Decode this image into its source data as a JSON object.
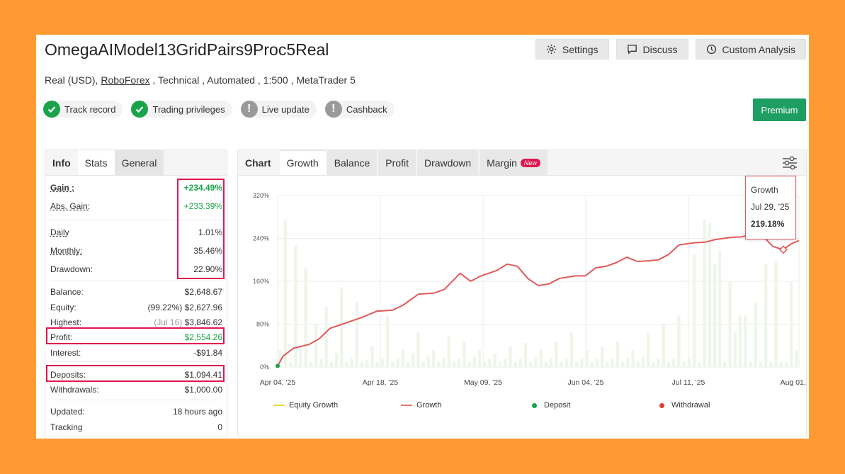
{
  "header": {
    "title": "OmegaAIModel13GridPairs9Proc5Real",
    "buttons": [
      {
        "label": "Settings",
        "icon": "gear-icon"
      },
      {
        "label": "Discuss",
        "icon": "chat-icon"
      },
      {
        "label": "Custom Analysis",
        "icon": "clock-icon"
      }
    ],
    "meta_prefix": "Real (USD), ",
    "meta_broker": "RoboForex",
    "meta_suffix": " , Technical , Automated , 1:500 , MetaTrader 5",
    "premium_label": "Premium"
  },
  "badges": [
    {
      "label": "Track record",
      "status": "ok"
    },
    {
      "label": "Trading privileges",
      "status": "ok"
    },
    {
      "label": "Live update",
      "status": "warn"
    },
    {
      "label": "Cashback",
      "status": "warn"
    }
  ],
  "stats": {
    "tabs": [
      "Info",
      "Stats",
      "General"
    ],
    "gain_label": "Gain :",
    "gain_value": "+234.49%",
    "abs_gain_label": "Abs. Gain:",
    "abs_gain_value": "+233.39%",
    "daily_label": "Daily",
    "daily_value": "1.01%",
    "monthly_label": "Monthly:",
    "monthly_value": "35.46%",
    "drawdown_label": "Drawdown:",
    "drawdown_value": "22.90%",
    "balance_label": "Balance:",
    "balance_value": "$2,648.67",
    "equity_label": "Equity:",
    "equity_pct": "(99.22%)",
    "equity_value": "$2,627.96",
    "highest_label": "Highest:",
    "highest_date": "(Jul 16)",
    "highest_value": "$3,846.62",
    "profit_label": "Profit:",
    "profit_value": "$2,554.26",
    "interest_label": "Interest:",
    "interest_value": "-$91.84",
    "deposits_label": "Deposits:",
    "deposits_value": "$1,094.41",
    "withdrawals_label": "Withdrawals:",
    "withdrawals_value": "$1,000.00",
    "updated_label": "Updated:",
    "updated_value": "18 hours ago",
    "tracking_label": "Tracking",
    "tracking_value": "0"
  },
  "chart_panel": {
    "tabs": [
      "Chart",
      "Growth",
      "Balance",
      "Profit",
      "Drawdown",
      "Margin"
    ],
    "new_badge": "New",
    "tooltip": {
      "title": "Growth",
      "date": "Jul 29, '25",
      "value": "219.18%"
    },
    "legend": [
      {
        "label": "Equity Growth",
        "color": "#e6d84a"
      },
      {
        "label": "Growth",
        "color": "#e57373"
      },
      {
        "label": "Deposit",
        "color": "#1aa34a"
      },
      {
        "label": "Withdrawal",
        "color": "#e53935"
      }
    ]
  },
  "chart_data": {
    "type": "line",
    "ylim": [
      0,
      320
    ],
    "ytick_labels": [
      "320%",
      "240%",
      "160%",
      "80%",
      "0%"
    ],
    "yticks": [
      320,
      240,
      160,
      80,
      0
    ],
    "xtick_labels": [
      "Apr 04, '25",
      "Apr 18, '25",
      "May 09, '25",
      "Jun 04, '25",
      "Jul 11, '25",
      "Aug 01, '25"
    ],
    "xtick_pos": [
      0,
      0.197,
      0.394,
      0.591,
      0.788,
      1.0
    ],
    "series": [
      {
        "name": "Growth",
        "points": [
          [
            0,
            2
          ],
          [
            0.01,
            20
          ],
          [
            0.03,
            35
          ],
          [
            0.06,
            42
          ],
          [
            0.08,
            53
          ],
          [
            0.1,
            72
          ],
          [
            0.13,
            82
          ],
          [
            0.16,
            92
          ],
          [
            0.19,
            104
          ],
          [
            0.22,
            106
          ],
          [
            0.24,
            115
          ],
          [
            0.27,
            136
          ],
          [
            0.3,
            138
          ],
          [
            0.32,
            145
          ],
          [
            0.35,
            175
          ],
          [
            0.37,
            160
          ],
          [
            0.39,
            170
          ],
          [
            0.42,
            180
          ],
          [
            0.44,
            192
          ],
          [
            0.46,
            188
          ],
          [
            0.48,
            165
          ],
          [
            0.5,
            152
          ],
          [
            0.52,
            155
          ],
          [
            0.54,
            165
          ],
          [
            0.57,
            170
          ],
          [
            0.59,
            170
          ],
          [
            0.61,
            185
          ],
          [
            0.63,
            188
          ],
          [
            0.65,
            195
          ],
          [
            0.67,
            205
          ],
          [
            0.69,
            197
          ],
          [
            0.71,
            198
          ],
          [
            0.73,
            200
          ],
          [
            0.75,
            210
          ],
          [
            0.77,
            228
          ],
          [
            0.8,
            232
          ],
          [
            0.82,
            233
          ],
          [
            0.84,
            238
          ],
          [
            0.87,
            242
          ],
          [
            0.89,
            243
          ],
          [
            0.91,
            248
          ],
          [
            0.93,
            245
          ],
          [
            0.95,
            225
          ],
          [
            0.97,
            219
          ],
          [
            0.985,
            230
          ],
          [
            1.0,
            236
          ]
        ]
      }
    ],
    "bars": [
      0.1,
      0.86,
      0.03,
      0.71,
      0.12,
      0.58,
      0.03,
      0.25,
      0.05,
      0.35,
      0.03,
      0.08,
      0.46,
      0.03,
      0.05,
      0.38,
      0.03,
      0.04,
      0.12,
      0.03,
      0.05,
      0.3,
      0.03,
      0.05,
      0.1,
      0.03,
      0.08,
      0.2,
      0.03,
      0.06,
      0.1,
      0.03,
      0.05,
      0.18,
      0.03,
      0.05,
      0.15,
      0.03,
      0.06,
      0.1,
      0.03,
      0.05,
      0.08,
      0.03,
      0.05,
      0.12,
      0.03,
      0.05,
      0.14,
      0.03,
      0.06,
      0.1,
      0.03,
      0.05,
      0.15,
      0.03,
      0.05,
      0.2,
      0.03,
      0.05,
      0.1,
      0.03,
      0.05,
      0.12,
      0.03,
      0.05,
      0.15,
      0.03,
      0.05,
      0.1,
      0.03,
      0.06,
      0.2,
      0.03,
      0.05,
      0.25,
      0.03,
      0.05,
      0.3,
      0.03,
      0.05,
      0.66,
      0.03,
      0.86,
      0.84,
      0.6,
      0.68,
      0.03,
      0.5,
      0.2,
      0.3,
      0.3,
      0.03,
      0.38,
      0.03,
      0.6,
      0.03,
      0.62,
      0.03,
      0.03,
      0.5,
      0.1
    ]
  }
}
